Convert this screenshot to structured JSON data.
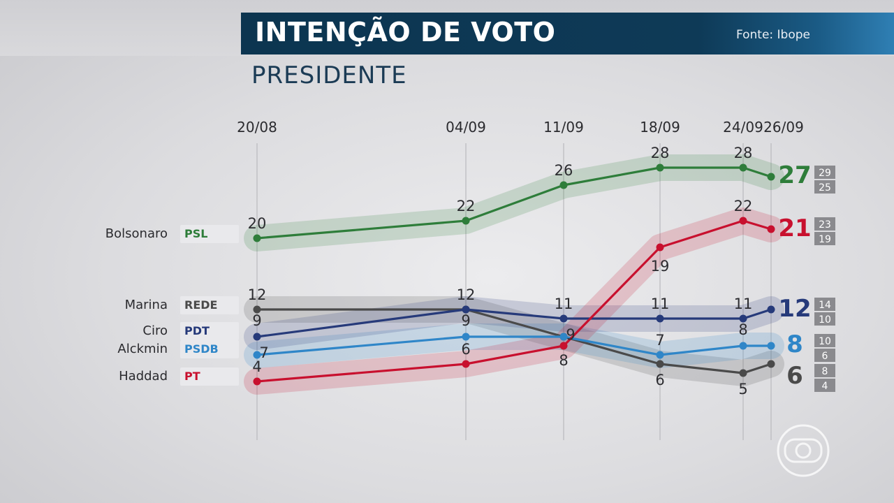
{
  "header": {
    "title": "INTENÇÃO DE VOTO",
    "source": "Fonte: Ibope",
    "subtitle": "PRESIDENTE"
  },
  "chart_data": {
    "type": "line",
    "x": [
      "20/08",
      "04/09",
      "11/09",
      "18/09",
      "24/09",
      "26/09"
    ],
    "series": [
      {
        "name": "Bolsonaro",
        "party": "PSL",
        "color": "#2e7d3a",
        "values": [
          20,
          22,
          26,
          28,
          28,
          27
        ],
        "range_high": 29,
        "range_low": 25
      },
      {
        "name": "Haddad",
        "party": "PT",
        "color": "#c8102e",
        "values": [
          4,
          6,
          8,
          19,
          22,
          21
        ],
        "range_high": 23,
        "range_low": 19
      },
      {
        "name": "Ciro",
        "party": "PDT",
        "color": "#263a7a",
        "values": [
          9,
          12,
          11,
          11,
          11,
          12
        ],
        "range_high": 14,
        "range_low": 10
      },
      {
        "name": "Alckmin",
        "party": "PSDB",
        "color": "#2f86c8",
        "values": [
          7,
          9,
          9,
          7,
          8,
          8
        ],
        "range_high": 10,
        "range_low": 6
      },
      {
        "name": "Marina",
        "party": "REDE",
        "color": "#4a4a4a",
        "values": [
          12,
          12,
          9,
          6,
          5,
          6
        ],
        "range_high": 8,
        "range_low": 4
      }
    ],
    "value_labels": [
      {
        "series": 0,
        "texts": [
          "20",
          "22",
          "26",
          "28",
          "28",
          "27"
        ]
      },
      {
        "series": 1,
        "texts": [
          "4",
          "6",
          "8",
          "19",
          "22",
          "21"
        ]
      },
      {
        "series": 2,
        "texts": [
          "9",
          "",
          "11",
          "11",
          "11",
          "12"
        ]
      },
      {
        "series": 3,
        "texts": [
          "7",
          "9",
          "",
          "7",
          "8",
          "8"
        ]
      },
      {
        "series": 4,
        "texts": [
          "12",
          "12",
          "9",
          "6",
          "5",
          "6"
        ]
      }
    ]
  },
  "legend": [
    {
      "name": "Bolsonaro",
      "party": "PSL",
      "party_color": "#2e7d3a"
    },
    {
      "name": "Marina",
      "party": "REDE",
      "party_color": "#4a4a4a"
    },
    {
      "name": "Ciro",
      "party": "PDT",
      "party_color": "#263a7a"
    },
    {
      "name": "Alckmin",
      "party": "PSDB",
      "party_color": "#2f86c8"
    },
    {
      "name": "Haddad",
      "party": "PT",
      "party_color": "#c8102e"
    }
  ],
  "logo": {
    "icon": "globo-logo-icon"
  }
}
